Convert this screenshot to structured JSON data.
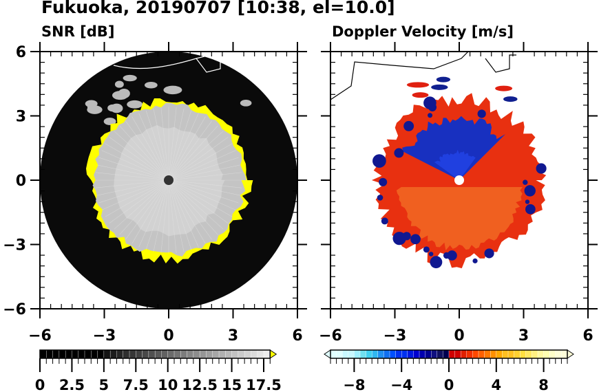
{
  "title": "Fukuoka, 20190707 [10:38, el=10.0]",
  "chart_data": [
    {
      "type": "heatmap",
      "title": "SNR [dB]",
      "description_kind": "radar PPI",
      "xlim": [
        -6,
        6
      ],
      "ylim": [
        -6,
        6
      ],
      "xticks": [
        "-6",
        "-3",
        "0",
        "3",
        "6"
      ],
      "yticks": [
        "-6",
        "-3",
        "0",
        "3",
        "6"
      ],
      "colorbar": {
        "range": [
          0,
          18
        ],
        "step": 0.5,
        "ticks": [
          "0",
          "2.5",
          "5",
          "7.5",
          "10",
          "12.5",
          "15",
          "17.5"
        ],
        "tick_values": [
          0,
          2.5,
          5,
          7.5,
          10,
          12.5,
          15,
          17.5
        ],
        "colors": {
          "low": "#000000",
          "high": "#f4f4f4",
          "over": "#ffff00"
        }
      },
      "radar_range": 6,
      "echo_radius_approx": 3.6
    },
    {
      "type": "heatmap",
      "title": "Doppler Velocity [m/s]",
      "xlim": [
        -6,
        6
      ],
      "ylim": [
        -6,
        6
      ],
      "xticks": [
        "-6",
        "-3",
        "0",
        "3",
        "6"
      ],
      "yticks": [
        "-6",
        "-3",
        "0",
        "3",
        "6"
      ],
      "colorbar": {
        "range": [
          -10,
          10
        ],
        "step": 0.5,
        "ticks": [
          "−8",
          "−4",
          "0",
          "4",
          "8"
        ],
        "tick_values": [
          -8,
          -4,
          0,
          4,
          8
        ],
        "colors": [
          "#c8f8ff",
          "#40d8f0",
          "#0060ff",
          "#0000a0",
          "#d00000",
          "#ff6000",
          "#ffd030",
          "#ffffc0"
        ]
      },
      "echo_radius_approx": 3.8
    }
  ]
}
